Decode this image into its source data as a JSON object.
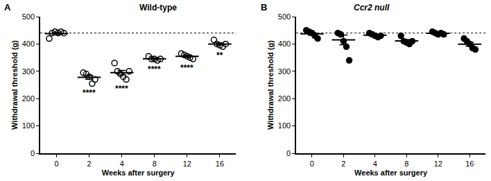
{
  "chart_data": [
    {
      "type": "scatter",
      "panel_label": "A",
      "title": "Wild-type",
      "x_label": "Weeks after surgery",
      "y_label": "Withdrawal threshold (g)",
      "categories": [
        "0",
        "2",
        "4",
        "8",
        "12",
        "16"
      ],
      "points": [
        [
          420,
          440,
          445,
          440,
          445,
          440
        ],
        [
          295,
          290,
          280,
          255,
          270
        ],
        [
          330,
          300,
          290,
          280,
          270,
          300
        ],
        [
          355,
          345,
          345,
          340,
          345
        ],
        [
          365,
          360,
          355,
          350,
          345
        ],
        [
          415,
          400,
          395,
          390,
          400
        ]
      ],
      "mean": [
        438,
        278,
        295,
        346,
        355,
        400
      ],
      "error": [
        4,
        7,
        8,
        3,
        4,
        4
      ],
      "baseline": 440,
      "annotations": [
        {
          "category": "2",
          "text": "****"
        },
        {
          "category": "4",
          "text": "****"
        },
        {
          "category": "8",
          "text": "****"
        },
        {
          "category": "12",
          "text": "****"
        },
        {
          "category": "16",
          "text": "**"
        }
      ],
      "marker": "circle-open",
      "color": "#000000",
      "ylim": [
        0,
        500
      ],
      "yticks": [
        0,
        100,
        200,
        300,
        400,
        500
      ],
      "grid": false
    },
    {
      "type": "scatter",
      "panel_label": "B",
      "title": "Ccr2 null",
      "x_label": "Weeks after surgery",
      "y_label": "Withdrawal threshold (g)",
      "categories": [
        "0",
        "2",
        "4",
        "8",
        "12",
        "16"
      ],
      "points": [
        [
          450,
          445,
          440,
          430,
          420
        ],
        [
          440,
          435,
          410,
          390,
          340
        ],
        [
          440,
          435,
          430,
          425,
          430
        ],
        [
          430,
          410,
          405,
          400,
          410
        ],
        [
          445,
          440,
          435,
          440,
          435
        ],
        [
          420,
          410,
          400,
          385,
          380
        ]
      ],
      "mean": [
        437,
        415,
        432,
        411,
        439,
        399
      ],
      "error": [
        5,
        18,
        3,
        5,
        2,
        7
      ],
      "baseline": 440,
      "annotations": [],
      "marker": "triangle",
      "color": "#000000",
      "ylim": [
        0,
        500
      ],
      "yticks": [
        0,
        100,
        200,
        300,
        400,
        500
      ],
      "grid": false
    }
  ]
}
